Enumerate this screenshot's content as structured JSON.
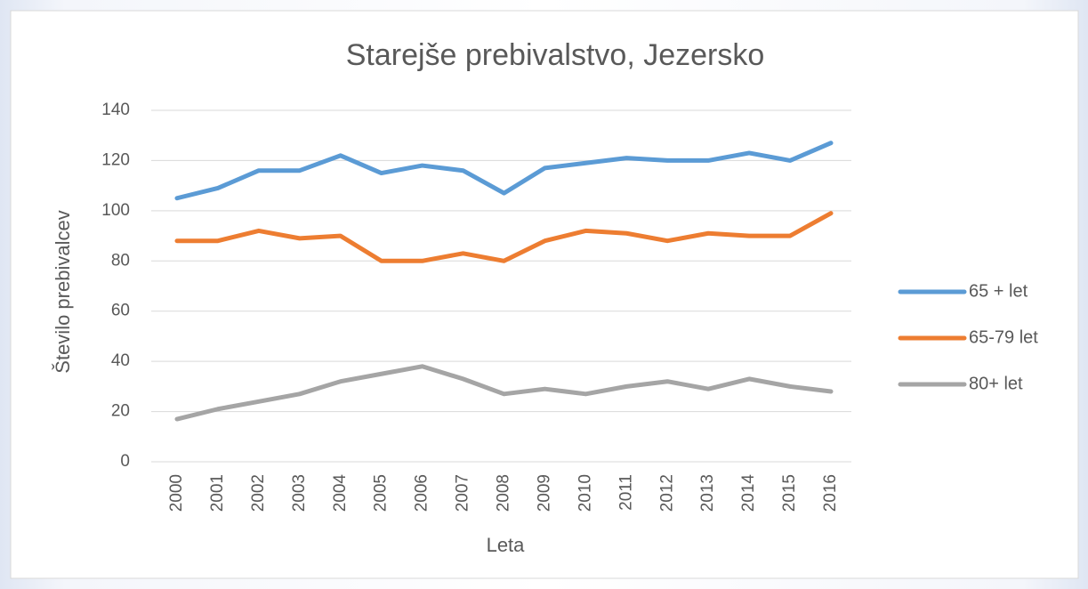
{
  "chart_data": {
    "type": "line",
    "title": "Starejše prebivalstvo, Jezersko",
    "x_label": "Leta",
    "y_label": "Število prebivalcev",
    "categories": [
      "2000",
      "2001",
      "2002",
      "2003",
      "2004",
      "2005",
      "2006",
      "2007",
      "2008",
      "2009",
      "2010",
      "2011",
      "2012",
      "2013",
      "2014",
      "2015",
      "2016"
    ],
    "series": [
      {
        "name": "65 + let",
        "color": "#5b9bd5",
        "values": [
          105,
          109,
          116,
          116,
          122,
          115,
          118,
          116,
          107,
          117,
          119,
          121,
          120,
          120,
          123,
          120,
          127
        ]
      },
      {
        "name": "65-79 let",
        "color": "#ed7d31",
        "values": [
          88,
          88,
          92,
          89,
          90,
          80,
          80,
          83,
          80,
          88,
          92,
          91,
          88,
          91,
          90,
          90,
          99
        ]
      },
      {
        "name": "80+ let",
        "color": "#a5a5a5",
        "values": [
          17,
          21,
          24,
          27,
          32,
          35,
          38,
          33,
          27,
          29,
          27,
          30,
          32,
          29,
          33,
          30,
          28
        ]
      }
    ],
    "ylim": [
      0,
      140
    ],
    "yticks": [
      0,
      20,
      40,
      60,
      80,
      100,
      120,
      140
    ],
    "grid": true,
    "legend": "right"
  }
}
